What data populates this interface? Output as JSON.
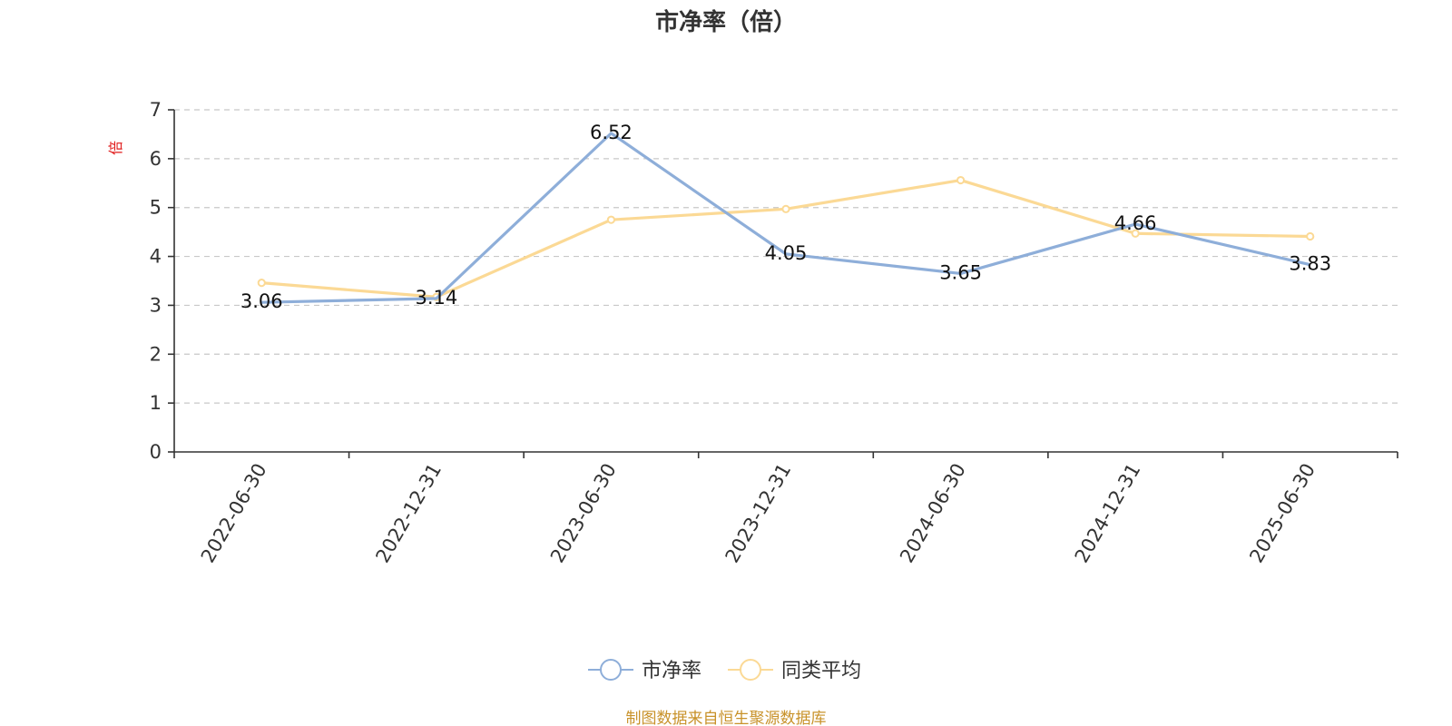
{
  "chart_data": {
    "type": "line",
    "title": "市净率（倍）",
    "ylabel": "倍",
    "xlabel": "",
    "categories": [
      "2022-06-30",
      "2022-12-31",
      "2023-06-30",
      "2023-12-31",
      "2024-06-30",
      "2024-12-31",
      "2025-06-30"
    ],
    "ylim": [
      0,
      7
    ],
    "yticks": [
      0,
      1,
      2,
      3,
      4,
      5,
      6,
      7
    ],
    "grid": true,
    "legend_position": "bottom",
    "series": [
      {
        "name": "市净率",
        "color": "#8eaed9",
        "values": [
          3.06,
          3.14,
          6.52,
          4.05,
          3.65,
          4.66,
          3.83
        ],
        "labels": [
          "3.06",
          "3.14",
          "6.52",
          "4.05",
          "3.65",
          "4.66",
          "3.83"
        ]
      },
      {
        "name": "同类平均",
        "color": "#fbd995",
        "values": [
          3.46,
          3.17,
          4.75,
          4.97,
          5.56,
          4.47,
          4.41
        ]
      }
    ],
    "source": "制图数据来自恒生聚源数据库"
  }
}
